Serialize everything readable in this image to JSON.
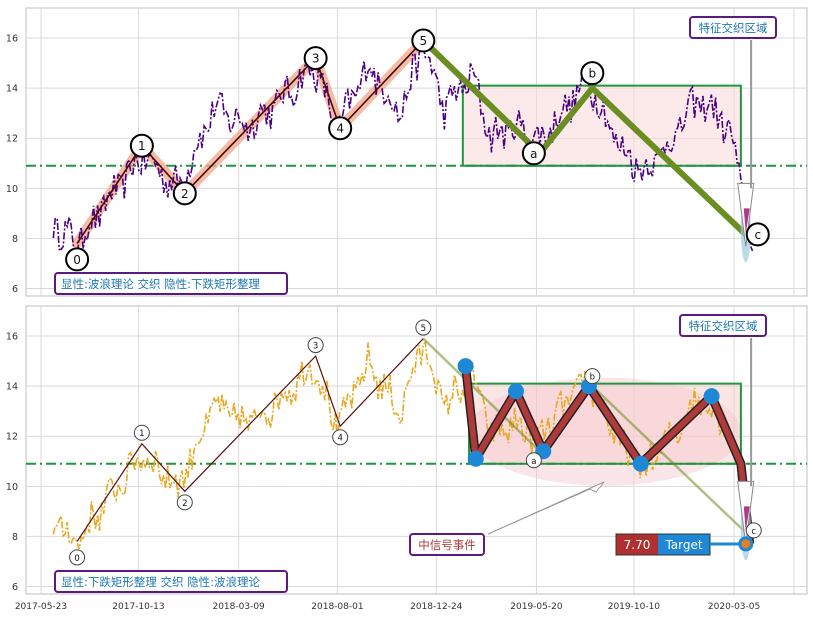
{
  "chart_data": [
    {
      "type": "line",
      "panel": "top",
      "ylim": [
        5.7,
        17.2
      ],
      "yticks": [
        6,
        8,
        10,
        12,
        14,
        16
      ],
      "xlim_dates": [
        "2017-05-01",
        "2020-06-20"
      ],
      "grid": true,
      "hline": {
        "value": 10.9,
        "color": "#1a9641"
      },
      "annotation_box": "显性:波浪理论 交织 隐性:下跌矩形整理",
      "feature_label": "特征交织区域",
      "price_series": {
        "name": "",
        "color": "#4b0082",
        "x": [
          "2017-06-10",
          "2017-07-15",
          "2017-09-01",
          "2017-10-20",
          "2017-12-10",
          "2018-02-01",
          "2018-03-20",
          "2018-05-01",
          "2018-06-28",
          "2018-08-01",
          "2018-09-15",
          "2018-11-01",
          "2018-12-05",
          "2019-01-05",
          "2019-02-15",
          "2019-03-15",
          "2019-04-15",
          "2019-05-25",
          "2019-07-01",
          "2019-08-05",
          "2019-09-20",
          "2019-10-25",
          "2019-12-01",
          "2020-01-10",
          "2020-02-10",
          "2020-03-01",
          "2020-03-18",
          "2020-04-01"
        ],
        "y": [
          8.6,
          7.8,
          9.6,
          11.3,
          10.0,
          13.2,
          12.5,
          13.3,
          14.9,
          12.3,
          14.9,
          13.0,
          15.7,
          13.2,
          14.5,
          12.0,
          12.5,
          11.9,
          13.2,
          14.3,
          11.6,
          10.7,
          11.8,
          13.5,
          13.0,
          12.0,
          9.8,
          7.5
        ]
      },
      "wave_points": [
        {
          "label": "0",
          "date": "2017-07-15",
          "value": 7.8
        },
        {
          "label": "1",
          "date": "2017-10-18",
          "value": 11.7
        },
        {
          "label": "2",
          "date": "2017-12-20",
          "value": 9.8
        },
        {
          "label": "3",
          "date": "2018-06-30",
          "value": 15.2
        },
        {
          "label": "4",
          "date": "2018-08-05",
          "value": 12.4
        },
        {
          "label": "5",
          "date": "2018-12-05",
          "value": 15.9
        },
        {
          "label": "a",
          "date": "2019-05-25",
          "value": 11.4
        },
        {
          "label": "b",
          "date": "2019-08-10",
          "value": 14.0
        },
        {
          "label": "c",
          "date": "2020-03-28",
          "value": 8.0
        }
      ],
      "rectangle": {
        "x0": "2019-02-01",
        "x1": "2020-03-15",
        "y0": 10.9,
        "y1": 14.1
      }
    },
    {
      "type": "line",
      "panel": "bottom",
      "ylim": [
        5.7,
        17.2
      ],
      "yticks": [
        6,
        8,
        10,
        12,
        14,
        16
      ],
      "xticks": [
        "2017-05-23",
        "2017-10-13",
        "2018-03-09",
        "2018-08-01",
        "2018-12-24",
        "2019-05-20",
        "2019-10-10",
        "2020-03-05"
      ],
      "grid": true,
      "hline": {
        "value": 10.9,
        "color": "#1a9641"
      },
      "annotation_box": "显性:下跌矩形整理 交织 隐性:波浪理论",
      "feature_label": "特征交织区域",
      "signal_label": "中信号事件",
      "target": {
        "label": "Target",
        "value": "7.70"
      },
      "price_series": {
        "name": "",
        "color": "#e8a820",
        "x": [
          "2017-06-10",
          "2017-07-15",
          "2017-09-01",
          "2017-10-20",
          "2017-12-10",
          "2018-02-01",
          "2018-03-20",
          "2018-05-01",
          "2018-06-28",
          "2018-08-01",
          "2018-09-15",
          "2018-11-01",
          "2018-12-05",
          "2019-01-05",
          "2019-02-15",
          "2019-03-15",
          "2019-04-15",
          "2019-05-25",
          "2019-07-01",
          "2019-08-05",
          "2019-09-20",
          "2019-10-25",
          "2019-12-01",
          "2020-01-10",
          "2020-02-10",
          "2020-03-01",
          "2020-03-18",
          "2020-04-01"
        ],
        "y": [
          8.6,
          7.8,
          9.6,
          11.3,
          10.0,
          13.2,
          12.5,
          13.3,
          14.9,
          12.3,
          14.9,
          13.0,
          15.7,
          13.2,
          14.5,
          12.0,
          12.5,
          11.9,
          13.2,
          14.3,
          11.6,
          10.7,
          11.8,
          13.5,
          13.0,
          12.0,
          9.8,
          7.5
        ]
      },
      "wave_points": [
        {
          "label": "0",
          "date": "2017-07-15",
          "value": 7.8
        },
        {
          "label": "1",
          "date": "2017-10-18",
          "value": 11.7
        },
        {
          "label": "2",
          "date": "2017-12-20",
          "value": 9.8
        },
        {
          "label": "3",
          "date": "2018-06-30",
          "value": 15.2
        },
        {
          "label": "4",
          "date": "2018-08-05",
          "value": 12.4
        },
        {
          "label": "5",
          "date": "2018-12-05",
          "value": 15.9
        },
        {
          "label": "a",
          "date": "2019-05-25",
          "value": 11.4
        },
        {
          "label": "b",
          "date": "2019-08-10",
          "value": 14.0
        },
        {
          "label": "c",
          "date": "2020-03-28",
          "value": 8.0
        }
      ],
      "rectangle": {
        "x0": "2019-02-10",
        "x1": "2020-03-15",
        "y0": 10.9,
        "y1": 14.1
      },
      "zigzag": [
        {
          "date": "2019-02-05",
          "value": 14.8
        },
        {
          "date": "2019-02-20",
          "value": 11.1
        },
        {
          "date": "2019-04-20",
          "value": 13.8
        },
        {
          "date": "2019-05-30",
          "value": 11.4
        },
        {
          "date": "2019-08-05",
          "value": 14.0
        },
        {
          "date": "2019-10-20",
          "value": 10.9
        },
        {
          "date": "2020-02-01",
          "value": 13.6
        },
        {
          "date": "2020-03-15",
          "value": 10.9
        },
        {
          "date": "2020-03-28",
          "value": 7.7
        }
      ]
    }
  ]
}
